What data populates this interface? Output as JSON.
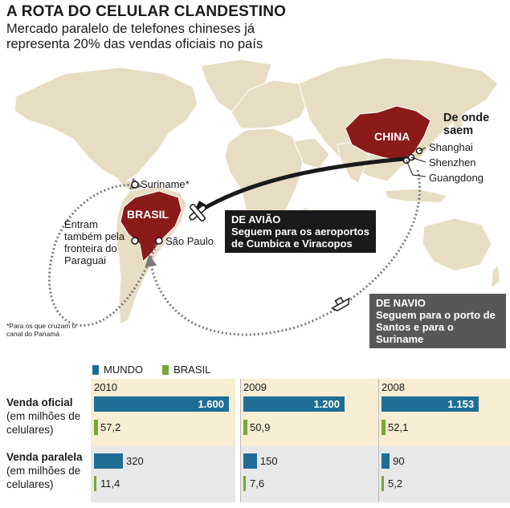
{
  "header": {
    "title": "A ROTA DO CELULAR CLANDESTINO",
    "subtitle": "Mercado paralelo de telefones chineses já representa 20% das vendas oficiais no país"
  },
  "map": {
    "china_label": "CHINA",
    "brasil_label": "BRASIL",
    "origin_heading": "De onde saem",
    "origins": [
      "Shanghai",
      "Shenzhen",
      "Guangdong"
    ],
    "suriname": "Suriname*",
    "sao_paulo": "São Paulo",
    "paraguay_note": "Entram também pela fronteira do Paraguai",
    "footnote": "*Para os que cruzam o canal do Panamá",
    "air_route": {
      "heading": "DE AVIÃO",
      "text": "Seguem para os aeroportos de Cumbica e Viracopos"
    },
    "sea_route": {
      "heading": "DE NAVIO",
      "text": "Seguem para o porto de Santos e para o Suriname"
    },
    "colors": {
      "land": "#e6ddc3",
      "ocean": "#ffffff",
      "highlight": "#8b1a1a",
      "route": "#1a1a1a"
    }
  },
  "legend": {
    "mundo": "MUNDO",
    "brasil": "BRASIL",
    "mundo_color": "#1f6e95",
    "brasil_color": "#76a73b"
  },
  "table": {
    "rows": [
      {
        "label_bold": "Venda oficial",
        "label_rest": "(em milhões de celulares)"
      },
      {
        "label_bold": "Venda paralela",
        "label_rest": "(em milhões de celulares)"
      }
    ],
    "years": [
      {
        "year": "2010",
        "oficial_mundo": "1.600",
        "oficial_mundo_value": 1600,
        "oficial_brasil": "57,2",
        "paralela_mundo": "320",
        "paralela_mundo_value": 320,
        "paralela_brasil": "11,4"
      },
      {
        "year": "2009",
        "oficial_mundo": "1.200",
        "oficial_mundo_value": 1200,
        "oficial_brasil": "50,9",
        "paralela_mundo": "150",
        "paralela_mundo_value": 150,
        "paralela_brasil": "7,6"
      },
      {
        "year": "2008",
        "oficial_mundo": "1.153",
        "oficial_mundo_value": 1153,
        "oficial_brasil": "52,1",
        "paralela_mundo": "90",
        "paralela_mundo_value": 90,
        "paralela_brasil": "5,2"
      }
    ]
  }
}
